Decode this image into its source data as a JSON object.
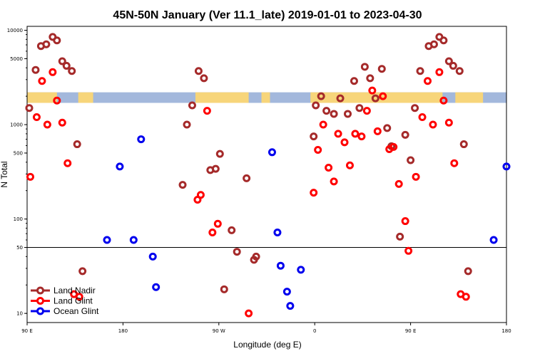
{
  "chart_data": {
    "type": "scatter",
    "title": "45N-50N January (Ver 11.1_late)   2019-01-01 to 2023-04-30",
    "xlabel": "Longitude (deg E)",
    "ylabel": "N Total",
    "x_ticks": [
      {
        "value": 90,
        "label": "90 E"
      },
      {
        "value": 180,
        "label": "180"
      },
      {
        "value": 270,
        "label": "90 W"
      },
      {
        "value": 360,
        "label": "0"
      },
      {
        "value": 450,
        "label": "90 E"
      },
      {
        "value": 540,
        "label": "180"
      }
    ],
    "xlim": [
      90,
      540
    ],
    "y_scale": "log",
    "ylim": [
      8,
      11000
    ],
    "y_ticks": [
      10,
      50,
      100,
      500,
      1000,
      5000,
      10000
    ],
    "reference_line_y": 50,
    "map_band": {
      "y_from": 1700,
      "y_to": 2200,
      "land_color": "#f7d57a",
      "ocean_color": "#a3b8dc"
    },
    "legend_position": "bottom-left",
    "series": [
      {
        "name": "Land Nadir",
        "color": "#a52a2a",
        "points": [
          [
            92,
            1500
          ],
          [
            98,
            3800
          ],
          [
            103,
            6800
          ],
          [
            108,
            7100
          ],
          [
            114,
            8500
          ],
          [
            118,
            7800
          ],
          [
            123,
            4700
          ],
          [
            127,
            4200
          ],
          [
            132,
            3700
          ],
          [
            137,
            620
          ],
          [
            142,
            28
          ],
          [
            236,
            230
          ],
          [
            240,
            1000
          ],
          [
            245,
            1600
          ],
          [
            251,
            3700
          ],
          [
            256,
            3100
          ],
          [
            262,
            330
          ],
          [
            267,
            340
          ],
          [
            271,
            490
          ],
          [
            275,
            18
          ],
          [
            282,
            76
          ],
          [
            287,
            45
          ],
          [
            296,
            270
          ],
          [
            303,
            37
          ],
          [
            305,
            40
          ],
          [
            359,
            750
          ],
          [
            361,
            1600
          ],
          [
            366,
            2000
          ],
          [
            371,
            1400
          ],
          [
            378,
            1300
          ],
          [
            384,
            1900
          ],
          [
            391,
            1300
          ],
          [
            397,
            2900
          ],
          [
            402,
            1500
          ],
          [
            407,
            4100
          ],
          [
            412,
            3100
          ],
          [
            417,
            1900
          ],
          [
            423,
            3900
          ],
          [
            428,
            920
          ],
          [
            432,
            590
          ],
          [
            440,
            65
          ],
          [
            445,
            780
          ],
          [
            450,
            420
          ],
          [
            454,
            1500
          ],
          [
            459,
            3700
          ],
          [
            467,
            6800
          ],
          [
            472,
            7100
          ],
          [
            477,
            8500
          ],
          [
            481,
            7800
          ],
          [
            486,
            4700
          ],
          [
            490,
            4200
          ],
          [
            496,
            3700
          ],
          [
            500,
            620
          ],
          [
            504,
            28
          ]
        ]
      },
      {
        "name": "Land Glint",
        "color": "#ff0000",
        "points": [
          [
            93,
            280
          ],
          [
            99,
            1200
          ],
          [
            104,
            2900
          ],
          [
            109,
            1000
          ],
          [
            114,
            3600
          ],
          [
            118,
            1800
          ],
          [
            123,
            1050
          ],
          [
            128,
            390
          ],
          [
            134,
            16
          ],
          [
            139,
            15
          ],
          [
            250,
            160
          ],
          [
            253,
            180
          ],
          [
            259,
            1400
          ],
          [
            264,
            72
          ],
          [
            269,
            89
          ],
          [
            298,
            10
          ],
          [
            359,
            190
          ],
          [
            363,
            540
          ],
          [
            368,
            1000
          ],
          [
            373,
            350
          ],
          [
            378,
            250
          ],
          [
            382,
            800
          ],
          [
            388,
            650
          ],
          [
            393,
            370
          ],
          [
            398,
            800
          ],
          [
            404,
            750
          ],
          [
            409,
            1400
          ],
          [
            414,
            2300
          ],
          [
            419,
            850
          ],
          [
            424,
            2000
          ],
          [
            430,
            550
          ],
          [
            434,
            580
          ],
          [
            439,
            235
          ],
          [
            445,
            95
          ],
          [
            448,
            46
          ],
          [
            455,
            280
          ],
          [
            461,
            1200
          ],
          [
            466,
            2900
          ],
          [
            471,
            1000
          ],
          [
            477,
            3600
          ],
          [
            481,
            1800
          ],
          [
            486,
            1050
          ],
          [
            491,
            390
          ],
          [
            497,
            16
          ],
          [
            502,
            15
          ]
        ]
      },
      {
        "name": "Ocean Glint",
        "color": "#0000ee",
        "points": [
          [
            165,
            60
          ],
          [
            177,
            360
          ],
          [
            190,
            60
          ],
          [
            197,
            700
          ],
          [
            208,
            40
          ],
          [
            211,
            19
          ],
          [
            320,
            510
          ],
          [
            325,
            72
          ],
          [
            328,
            32
          ],
          [
            334,
            17
          ],
          [
            337,
            12
          ],
          [
            347,
            29
          ],
          [
            528,
            60
          ],
          [
            540,
            360
          ]
        ]
      }
    ]
  }
}
